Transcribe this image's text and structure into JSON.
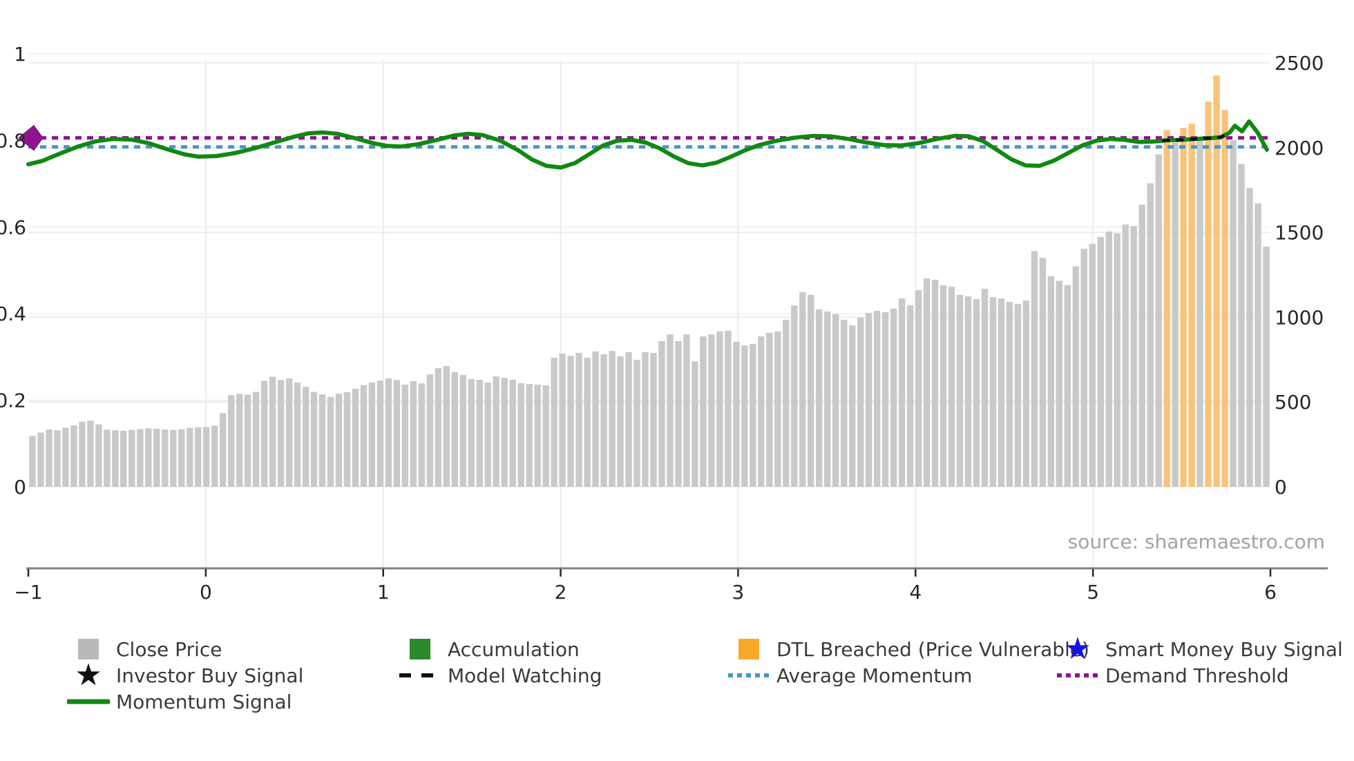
{
  "chart_data": {
    "type": "bar",
    "title": "",
    "x_axis": {
      "min": -1,
      "max": 6,
      "ticks": [
        -1,
        0,
        1,
        2,
        3,
        4,
        5,
        6
      ],
      "tick_labels": [
        "−1",
        "0",
        "1",
        "2",
        "3",
        "4",
        "5",
        "6"
      ],
      "gridline_ticks": [
        0,
        1,
        2,
        3,
        4,
        5
      ]
    },
    "y_left_axis": {
      "min": 0,
      "max": 1,
      "ticks": [
        0,
        0.2,
        0.4,
        0.6,
        0.8,
        1
      ],
      "tick_labels": [
        "0",
        "0.2",
        "0.4",
        "0.6",
        "0.8",
        "1"
      ],
      "measures": "Momentum Signal"
    },
    "y_right_axis": {
      "min": 0,
      "max": 2500,
      "ticks": [
        0,
        500,
        1000,
        1500,
        2000,
        2500
      ],
      "tick_labels": [
        "0",
        "500",
        "1000",
        "1500",
        "2000",
        "2500"
      ],
      "measures": "Close Price"
    },
    "close_price_bars": {
      "values": [
        300,
        320,
        338,
        333,
        348,
        362,
        384,
        391,
        368,
        337,
        334,
        331,
        336,
        341,
        345,
        343,
        338,
        336,
        340,
        348,
        351,
        353,
        360,
        435,
        541,
        548,
        544,
        560,
        625,
        649,
        630,
        640,
        615,
        590,
        560,
        545,
        530,
        549,
        558,
        578,
        600,
        615,
        627,
        639,
        630,
        602,
        623,
        610,
        663,
        700,
        712,
        676,
        659,
        635,
        631,
        615,
        651,
        643,
        631,
        611,
        607,
        602,
        598,
        761,
        786,
        773,
        790,
        761,
        798,
        782,
        801,
        769,
        794,
        749,
        794,
        790,
        859,
        899,
        859,
        899,
        740,
        887,
        899,
        916,
        920,
        855,
        834,
        842,
        887,
        908,
        916,
        985,
        1070,
        1148,
        1132,
        1046,
        1034,
        1018,
        985,
        952,
        997,
        1026,
        1038,
        1030,
        1050,
        1111,
        1070,
        1160,
        1229,
        1221,
        1188,
        1180,
        1132,
        1123,
        1107,
        1168,
        1119,
        1111,
        1091,
        1078,
        1099,
        1390,
        1350,
        1242,
        1215,
        1190,
        1300,
        1404,
        1433,
        1473,
        1506,
        1494,
        1547,
        1538,
        1664,
        1790,
        1960,
        2104,
        2030,
        2116,
        2141,
        2050,
        2271,
        2425,
        2222,
        2043,
        1904,
        1762,
        1672,
        1416
      ],
      "dtl_breached_indices": [
        137,
        139,
        140,
        142,
        143,
        144
      ]
    },
    "momentum_signal": {
      "points": [
        [
          -1.0,
          0.745
        ],
        [
          -0.92,
          0.753
        ],
        [
          -0.82,
          0.77
        ],
        [
          -0.72,
          0.786
        ],
        [
          -0.62,
          0.798
        ],
        [
          -0.52,
          0.8035
        ],
        [
          -0.42,
          0.802
        ],
        [
          -0.32,
          0.7935
        ],
        [
          -0.22,
          0.78
        ],
        [
          -0.12,
          0.768
        ],
        [
          -0.04,
          0.7625
        ],
        [
          0.06,
          0.764
        ],
        [
          0.16,
          0.7705
        ],
        [
          0.28,
          0.7825
        ],
        [
          0.4,
          0.797
        ],
        [
          0.5,
          0.809
        ],
        [
          0.58,
          0.8165
        ],
        [
          0.66,
          0.8185
        ],
        [
          0.74,
          0.8155
        ],
        [
          0.84,
          0.8055
        ],
        [
          0.94,
          0.794
        ],
        [
          1.02,
          0.7875
        ],
        [
          1.1,
          0.786
        ],
        [
          1.2,
          0.7915
        ],
        [
          1.3,
          0.801
        ],
        [
          1.4,
          0.8115
        ],
        [
          1.48,
          0.8155
        ],
        [
          1.56,
          0.8125
        ],
        [
          1.66,
          0.7995
        ],
        [
          1.76,
          0.7775
        ],
        [
          1.84,
          0.7555
        ],
        [
          1.92,
          0.7415
        ],
        [
          2.0,
          0.7375
        ],
        [
          2.08,
          0.7475
        ],
        [
          2.16,
          0.768
        ],
        [
          2.24,
          0.7885
        ],
        [
          2.32,
          0.7995
        ],
        [
          2.4,
          0.8015
        ],
        [
          2.48,
          0.795
        ],
        [
          2.56,
          0.7815
        ],
        [
          2.64,
          0.7625
        ],
        [
          2.72,
          0.7475
        ],
        [
          2.8,
          0.7425
        ],
        [
          2.88,
          0.749
        ],
        [
          2.96,
          0.7625
        ],
        [
          3.04,
          0.7775
        ],
        [
          3.12,
          0.7895
        ],
        [
          3.22,
          0.7995
        ],
        [
          3.32,
          0.8065
        ],
        [
          3.42,
          0.8105
        ],
        [
          3.52,
          0.8095
        ],
        [
          3.62,
          0.8035
        ],
        [
          3.72,
          0.7955
        ],
        [
          3.82,
          0.7895
        ],
        [
          3.92,
          0.7885
        ],
        [
          4.02,
          0.794
        ],
        [
          4.12,
          0.8035
        ],
        [
          4.22,
          0.8105
        ],
        [
          4.3,
          0.8095
        ],
        [
          4.38,
          0.7985
        ],
        [
          4.46,
          0.778
        ],
        [
          4.54,
          0.7565
        ],
        [
          4.62,
          0.7425
        ],
        [
          4.7,
          0.7415
        ],
        [
          4.78,
          0.7535
        ],
        [
          4.86,
          0.771
        ],
        [
          4.94,
          0.7885
        ],
        [
          5.02,
          0.7995
        ],
        [
          5.1,
          0.8035
        ],
        [
          5.18,
          0.8015
        ],
        [
          5.26,
          0.7965
        ],
        [
          5.34,
          0.7975
        ],
        [
          5.42,
          0.8005
        ],
        [
          5.5,
          0.8015
        ],
        [
          5.58,
          0.8035
        ],
        [
          5.66,
          0.8055
        ],
        [
          5.72,
          0.8075
        ],
        [
          5.77,
          0.818
        ],
        [
          5.8,
          0.834
        ],
        [
          5.84,
          0.821
        ],
        [
          5.88,
          0.844
        ],
        [
          5.93,
          0.817
        ],
        [
          5.98,
          0.7785
        ]
      ]
    },
    "model_watching": {
      "points": [
        [
          5.39,
          0.7995
        ],
        [
          5.42,
          0.8005
        ],
        [
          5.5,
          0.8015
        ],
        [
          5.58,
          0.8035
        ],
        [
          5.66,
          0.8055
        ],
        [
          5.72,
          0.8075
        ],
        [
          5.755,
          0.814
        ]
      ]
    },
    "average_momentum_value": 0.785,
    "demand_threshold_value": 0.806,
    "demand_marker": {
      "x": -1,
      "y": 0.806,
      "shape": "diamond"
    },
    "legend_position": "bottom",
    "grid": true
  },
  "legend": {
    "items": [
      {
        "id": "close-price",
        "label": "Close Price",
        "swatch": "gray-square"
      },
      {
        "id": "accumulation",
        "label": "Accumulation",
        "swatch": "green-square"
      },
      {
        "id": "dtl-breached",
        "label": "DTL Breached (Price Vulnerable)",
        "swatch": "orange-square"
      },
      {
        "id": "smart-money-buy-signal",
        "label": "Smart Money Buy Signal",
        "swatch": "blue-star"
      },
      {
        "id": "investor-buy-signal",
        "label": "Investor Buy Signal",
        "swatch": "black-star"
      },
      {
        "id": "model-watching",
        "label": "Model Watching",
        "swatch": "black-dashed-line"
      },
      {
        "id": "average-momentum",
        "label": "Average Momentum",
        "swatch": "blue-dotted-line"
      },
      {
        "id": "demand-threshold",
        "label": "Demand Threshold",
        "swatch": "purple-dotted-line"
      },
      {
        "id": "momentum-signal",
        "label": "Momentum Signal",
        "swatch": "green-line"
      }
    ]
  },
  "annotations": {
    "source": "source: sharemaestro.com"
  },
  "colors": {
    "bar_gray": "#c9c9c9",
    "bar_orange": "#f9c479",
    "legend_gray": "#b9b9b9",
    "legend_orange": "#f7a82a",
    "accumulation_green": "#2b8b2b",
    "momentum_green": "#118811",
    "average_momentum_blue": "#4795c8",
    "demand_threshold_purple": "#8e138e",
    "smart_money_blue": "#1515e6",
    "black": "#111111",
    "tick_text": "#262626",
    "legend_text": "#3a3a3a",
    "source_text": "#a3a3a3",
    "axis_spine": "#808080",
    "gridline": "#e9ebf2"
  }
}
